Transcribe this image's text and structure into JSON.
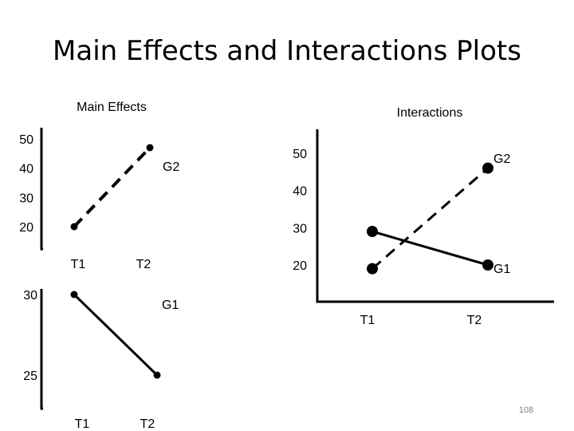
{
  "slide": {
    "title": "Main Effects and Interactions Plots",
    "page_number": "108"
  },
  "chart_data": [
    {
      "type": "line",
      "title": "Main Effects",
      "categories": [
        "T1",
        "T2"
      ],
      "series": [
        {
          "name": "G2",
          "values": [
            20,
            47
          ]
        }
      ],
      "yticks": [
        "50",
        "40",
        "30",
        "20"
      ],
      "line_style": "dashed"
    },
    {
      "type": "line",
      "title": "",
      "categories": [
        "T1",
        "T2"
      ],
      "series": [
        {
          "name": "G1",
          "values": [
            30,
            25
          ]
        }
      ],
      "yticks": [
        "30",
        "25"
      ],
      "line_style": "solid"
    },
    {
      "type": "line",
      "title": "Interactions",
      "categories": [
        "T1",
        "T2"
      ],
      "yticks": [
        "50",
        "40",
        "30",
        "20"
      ],
      "series": [
        {
          "name": "G2",
          "values": [
            19,
            46
          ],
          "line_style": "dashed"
        },
        {
          "name": "G1",
          "values": [
            29,
            20
          ],
          "line_style": "solid"
        }
      ]
    }
  ]
}
